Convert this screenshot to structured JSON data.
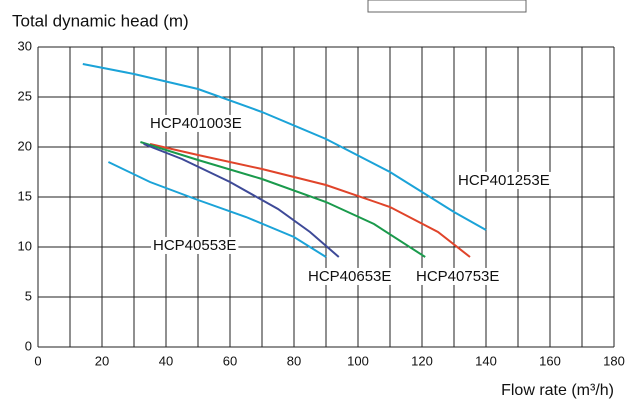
{
  "chart_data": {
    "type": "line",
    "title": "Total dynamic head (m)",
    "x_label": "Flow rate (m³/h)",
    "xlim": [
      0,
      180
    ],
    "xticks": [
      0,
      20,
      40,
      60,
      80,
      100,
      120,
      140,
      160,
      180
    ],
    "ylim": [
      0,
      30
    ],
    "yticks": [
      0,
      5,
      10,
      15,
      20,
      25,
      30
    ],
    "grid": true,
    "x_minor_grid": true,
    "series": [
      {
        "name": "HCP401253E",
        "color": "#1ba3d8",
        "x": [
          14,
          30,
          50,
          70,
          90,
          110,
          130,
          140
        ],
        "values": [
          28.3,
          27.3,
          25.8,
          23.5,
          20.8,
          17.5,
          13.5,
          11.7
        ]
      },
      {
        "name": "HCP401003E",
        "color": "#e0442a",
        "x": [
          35,
          50,
          70,
          90,
          110,
          125,
          135
        ],
        "values": [
          20.3,
          19.2,
          17.8,
          16.2,
          14,
          11.5,
          9
        ]
      },
      {
        "name": "HCP40753E",
        "color": "#1a9a4c",
        "x": [
          32,
          50,
          70,
          90,
          105,
          121
        ],
        "values": [
          20.5,
          18.7,
          16.8,
          14.5,
          12.3,
          9
        ]
      },
      {
        "name": "HCP40653E",
        "color": "#3e4a98",
        "x": [
          33,
          45,
          60,
          75,
          85,
          94
        ],
        "values": [
          20.3,
          18.8,
          16.5,
          13.8,
          11.5,
          9
        ]
      },
      {
        "name": "HCP40553E",
        "color": "#1ba3d8",
        "x": [
          22,
          35,
          50,
          65,
          80,
          90
        ],
        "values": [
          18.5,
          16.5,
          14.7,
          13,
          11,
          9
        ]
      }
    ]
  }
}
